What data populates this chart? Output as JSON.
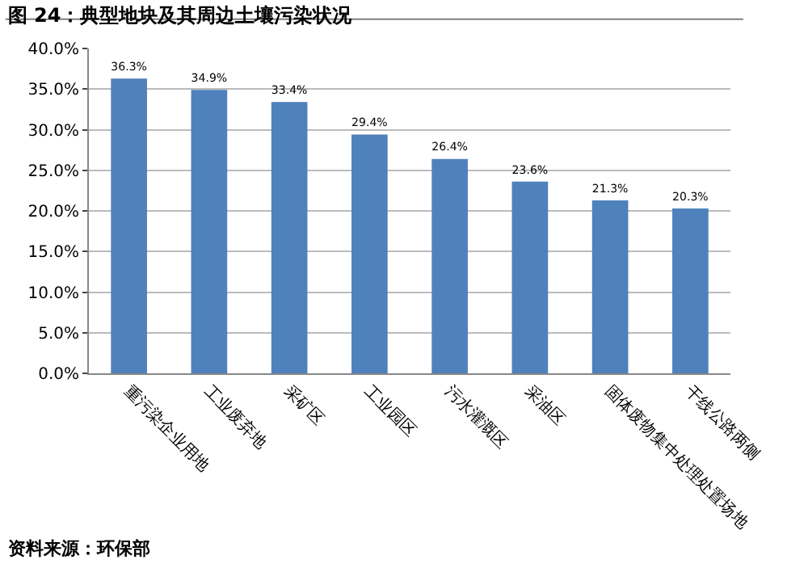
{
  "chart_data": {
    "type": "bar",
    "title": "图 24：典型地块及其周边土壤污染状况",
    "categories": [
      "重污染企业用地",
      "工业废弃地",
      "采矿区",
      "工业园区",
      "污水灌溉区",
      "采油区",
      "固体废物集中处理处置场地",
      "干线公路两侧"
    ],
    "values": [
      36.3,
      34.9,
      33.4,
      29.4,
      26.4,
      23.6,
      21.3,
      20.3
    ],
    "value_labels": [
      "36.3%",
      "34.9%",
      "33.4%",
      "29.4%",
      "26.4%",
      "23.6%",
      "21.3%",
      "20.3%"
    ],
    "color": "#4f81bd",
    "ylim": [
      0,
      40
    ],
    "yticks": [
      {
        "value": 0,
        "label": "0.0%"
      },
      {
        "value": 5,
        "label": "5.0%"
      },
      {
        "value": 10,
        "label": "10.0%"
      },
      {
        "value": 15,
        "label": "15.0%"
      },
      {
        "value": 20,
        "label": "20.0%"
      },
      {
        "value": 25,
        "label": "25.0%"
      },
      {
        "value": 30,
        "label": "30.0%"
      },
      {
        "value": 35,
        "label": "35.0%"
      },
      {
        "value": 40,
        "label": "40.0%"
      }
    ],
    "grid": "y",
    "annotations": [
      "资料来源：环保部"
    ]
  }
}
